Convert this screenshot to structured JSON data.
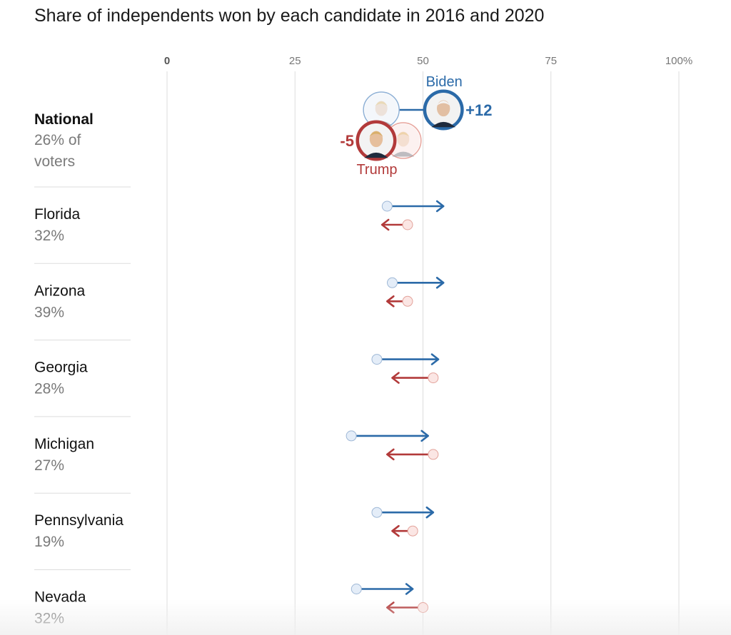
{
  "title": "Share of independents won by each candidate in 2016 and 2020",
  "colors": {
    "dem": "#2b6aa8",
    "rep": "#b23a3a",
    "dem_light": "#e4edf8",
    "rep_light": "#fbe6e4",
    "grid": "#dddddd",
    "divider": "#dddddd"
  },
  "chart_data": {
    "type": "dot-arrow",
    "xlim": [
      0,
      100
    ],
    "ticks": [
      {
        "value": 0,
        "label": "0"
      },
      {
        "value": 25,
        "label": "25"
      },
      {
        "value": 50,
        "label": "50"
      },
      {
        "value": 75,
        "label": "75"
      },
      {
        "value": 100,
        "label": "100%"
      }
    ],
    "series": [
      {
        "name": "Biden",
        "key": "dem"
      },
      {
        "name": "Trump",
        "key": "rep"
      }
    ],
    "national": {
      "name": "National",
      "share_line1": "26% of",
      "share_line2": "voters",
      "dem_2016": 42,
      "dem_2020": 54,
      "rep_2016": 46,
      "rep_2020": 41,
      "dem_change": "+12",
      "rep_change": "-5",
      "dem_label": "Biden",
      "rep_label": "Trump"
    },
    "rows": [
      {
        "name": "Florida",
        "share": "32%",
        "dem_2016": 43,
        "dem_2020": 54,
        "rep_2016": 47,
        "rep_2020": 42
      },
      {
        "name": "Arizona",
        "share": "39%",
        "dem_2016": 44,
        "dem_2020": 54,
        "rep_2016": 47,
        "rep_2020": 43
      },
      {
        "name": "Georgia",
        "share": "28%",
        "dem_2016": 41,
        "dem_2020": 53,
        "rep_2016": 52,
        "rep_2020": 44
      },
      {
        "name": "Michigan",
        "share": "27%",
        "dem_2016": 36,
        "dem_2020": 51,
        "rep_2016": 52,
        "rep_2020": 43
      },
      {
        "name": "Pennsylvania",
        "share": "19%",
        "dem_2016": 41,
        "dem_2020": 52,
        "rep_2016": 48,
        "rep_2020": 44
      },
      {
        "name": "Nevada",
        "share": "32%",
        "dem_2016": 37,
        "dem_2020": 48,
        "rep_2016": 50,
        "rep_2020": 43
      }
    ]
  }
}
